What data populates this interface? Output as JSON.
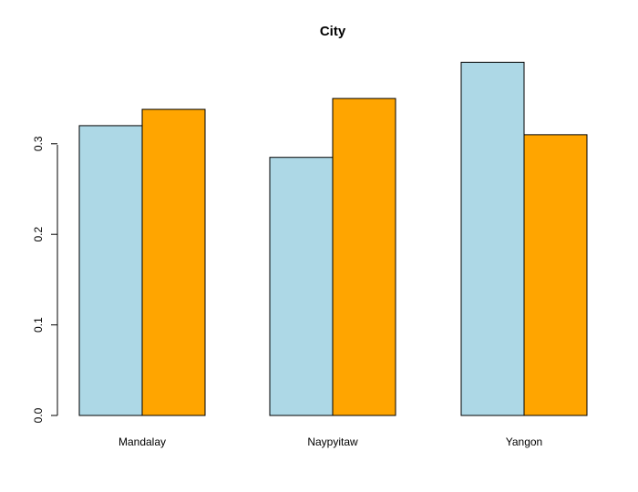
{
  "chart_data": {
    "type": "bar",
    "title": "City",
    "xlabel": "",
    "ylabel": "",
    "categories": [
      "Mandalay",
      "Naypyitaw",
      "Yangon"
    ],
    "series": [
      {
        "values": [
          0.32,
          0.285,
          0.39
        ],
        "color": "#add8e6"
      },
      {
        "values": [
          0.338,
          0.35,
          0.31
        ],
        "color": "#ffa500"
      }
    ],
    "ylim": [
      0,
      0.4
    ],
    "yticks": [
      "0.0",
      "0.1",
      "0.2",
      "0.3"
    ],
    "grid": false,
    "legend": "none"
  }
}
